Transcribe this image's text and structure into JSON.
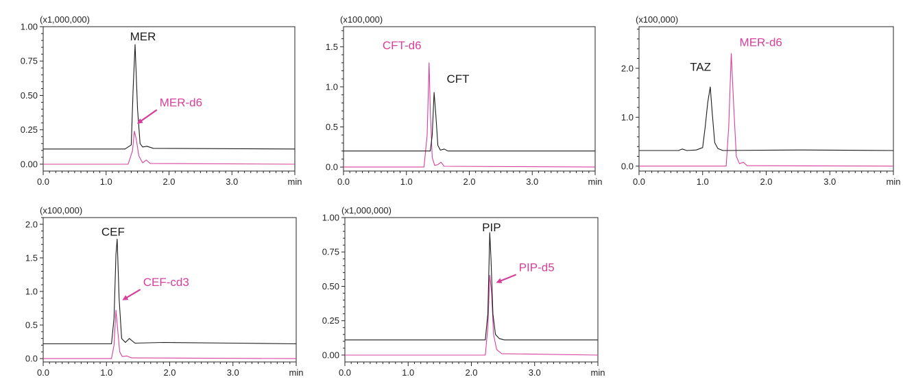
{
  "colors": {
    "analyte": "#1a1a1a",
    "internal_standard": "#d63f9a",
    "frame": "#222222"
  },
  "chart_data": [
    {
      "type": "line",
      "multiplier": "(x1,000,000)",
      "x_unit": "min",
      "xlim": [
        0,
        4.0
      ],
      "ylim": [
        -0.05,
        1.0
      ],
      "x_ticks": [
        "0.0",
        "1.0",
        "2.0",
        "3.0"
      ],
      "y_ticks": [
        "0.00",
        "0.25",
        "0.50",
        "0.75",
        "1.00"
      ],
      "series": [
        {
          "name": "MER",
          "role": "analyte",
          "x": [
            0,
            1.3,
            1.4,
            1.43,
            1.46,
            1.5,
            1.54,
            1.58,
            1.65,
            1.75,
            4.0
          ],
          "y": [
            0.11,
            0.11,
            0.14,
            0.55,
            0.87,
            0.4,
            0.15,
            0.125,
            0.13,
            0.115,
            0.11
          ]
        },
        {
          "name": "MER-d6",
          "role": "internal_standard",
          "x": [
            0,
            1.35,
            1.42,
            1.45,
            1.48,
            1.52,
            1.58,
            1.64,
            1.7,
            4.0
          ],
          "y": [
            0.0,
            0.0,
            0.1,
            0.24,
            0.18,
            0.06,
            0.01,
            0.03,
            0.005,
            0.0
          ]
        }
      ],
      "annotations": [
        {
          "text": "MER",
          "role": "analyte",
          "x": 1.38,
          "y": 0.9,
          "arrow_to": null
        },
        {
          "text": "MER-d6",
          "role": "internal_standard",
          "x": 1.85,
          "y": 0.42,
          "arrow_to": [
            1.51,
            0.3
          ]
        }
      ]
    },
    {
      "type": "line",
      "multiplier": "(x100,000)",
      "x_unit": "min",
      "xlim": [
        0,
        4.0
      ],
      "ylim": [
        -0.05,
        1.75
      ],
      "x_ticks": [
        "0.0",
        "1.0",
        "2.0",
        "3.0"
      ],
      "y_ticks": [
        "0.0",
        "0.5",
        "1.0",
        "1.5"
      ],
      "series": [
        {
          "name": "CFT",
          "role": "analyte",
          "x": [
            0,
            1.38,
            1.41,
            1.44,
            1.47,
            1.5,
            1.54,
            1.6,
            1.66,
            4.0
          ],
          "y": [
            0.2,
            0.2,
            0.4,
            0.93,
            0.62,
            0.27,
            0.21,
            0.225,
            0.2,
            0.2
          ]
        },
        {
          "name": "CFT-d6",
          "role": "internal_standard",
          "x": [
            0,
            1.28,
            1.33,
            1.36,
            1.38,
            1.41,
            1.45,
            1.5,
            1.55,
            1.6,
            4.0
          ],
          "y": [
            0.0,
            0.0,
            0.4,
            1.3,
            0.7,
            0.12,
            0.02,
            0.03,
            0.06,
            0.01,
            0.0
          ]
        }
      ],
      "annotations": [
        {
          "text": "CFT-d6",
          "role": "internal_standard",
          "x": 0.62,
          "y": 1.47,
          "arrow_to": null
        },
        {
          "text": "CFT",
          "role": "analyte",
          "x": 1.64,
          "y": 1.05,
          "arrow_to": null
        }
      ]
    },
    {
      "type": "line",
      "multiplier": "(x100,000)",
      "x_unit": "min",
      "xlim": [
        0,
        4.0
      ],
      "ylim": [
        -0.1,
        2.85
      ],
      "x_ticks": [
        "0.0",
        "1.0",
        "2.0",
        "3.0"
      ],
      "y_ticks": [
        "0.0",
        "1.0",
        "2.0"
      ],
      "series": [
        {
          "name": "TAZ",
          "role": "analyte",
          "x": [
            0,
            0.62,
            0.68,
            0.75,
            0.9,
            1.0,
            1.04,
            1.08,
            1.12,
            1.15,
            1.19,
            1.24,
            1.32,
            2.5,
            2.6,
            4.0
          ],
          "y": [
            0.32,
            0.32,
            0.35,
            0.32,
            0.33,
            0.38,
            0.8,
            1.3,
            1.62,
            1.1,
            0.48,
            0.36,
            0.32,
            0.33,
            0.33,
            0.32
          ]
        },
        {
          "name": "MER-d6",
          "role": "internal_standard",
          "x": [
            0,
            1.37,
            1.41,
            1.45,
            1.49,
            1.53,
            1.58,
            1.64,
            1.7,
            4.0
          ],
          "y": [
            0.0,
            0.0,
            0.8,
            2.3,
            1.2,
            0.2,
            0.05,
            0.08,
            0.01,
            0.0
          ]
        }
      ],
      "annotations": [
        {
          "text": "TAZ",
          "role": "analyte",
          "x": 0.8,
          "y": 1.95,
          "arrow_to": null
        },
        {
          "text": "MER-d6",
          "role": "internal_standard",
          "x": 1.58,
          "y": 2.45,
          "arrow_to": null
        }
      ]
    },
    {
      "type": "line",
      "multiplier": "(x100,000)",
      "x_unit": "min",
      "xlim": [
        0,
        4.0
      ],
      "ylim": [
        -0.05,
        2.1
      ],
      "x_ticks": [
        "0.0",
        "1.0",
        "2.0",
        "3.0"
      ],
      "y_ticks": [
        "0.0",
        "0.5",
        "1.0",
        "1.5",
        "2.0"
      ],
      "series": [
        {
          "name": "CEF",
          "role": "analyte",
          "x": [
            0,
            1.08,
            1.12,
            1.15,
            1.17,
            1.2,
            1.24,
            1.3,
            1.36,
            1.45,
            1.9,
            3.0,
            4.0
          ],
          "y": [
            0.22,
            0.22,
            0.6,
            1.55,
            1.78,
            0.9,
            0.3,
            0.24,
            0.3,
            0.23,
            0.24,
            0.23,
            0.22
          ]
        },
        {
          "name": "CEF-cd3",
          "role": "internal_standard",
          "x": [
            0,
            1.08,
            1.12,
            1.15,
            1.18,
            1.21,
            1.25,
            1.32,
            1.4,
            4.0
          ],
          "y": [
            0.0,
            0.0,
            0.2,
            0.72,
            0.4,
            0.1,
            0.03,
            0.04,
            0.01,
            0.0
          ]
        }
      ],
      "annotations": [
        {
          "text": "CEF",
          "role": "analyte",
          "x": 0.92,
          "y": 1.83,
          "arrow_to": null
        },
        {
          "text": "CEF-cd3",
          "role": "internal_standard",
          "x": 1.58,
          "y": 1.08,
          "arrow_to": [
            1.27,
            0.88
          ]
        }
      ]
    },
    {
      "type": "line",
      "multiplier": "(x1,000,000)",
      "x_unit": "min",
      "xlim": [
        0,
        4.0
      ],
      "ylim": [
        -0.05,
        1.0
      ],
      "x_ticks": [
        "0.0",
        "1.0",
        "2.0",
        "3.0"
      ],
      "y_ticks": [
        "0.00",
        "0.25",
        "0.50",
        "0.75",
        "1.00"
      ],
      "series": [
        {
          "name": "PIP",
          "role": "analyte",
          "x": [
            0,
            2.22,
            2.26,
            2.29,
            2.31,
            2.34,
            2.38,
            2.44,
            2.52,
            4.0
          ],
          "y": [
            0.11,
            0.11,
            0.3,
            0.89,
            0.7,
            0.3,
            0.15,
            0.12,
            0.11,
            0.11
          ]
        },
        {
          "name": "PIP-d5",
          "role": "internal_standard",
          "x": [
            0,
            2.22,
            2.26,
            2.29,
            2.32,
            2.35,
            2.4,
            2.48,
            4.0
          ],
          "y": [
            0.0,
            0.0,
            0.2,
            0.58,
            0.45,
            0.15,
            0.04,
            0.01,
            0.0
          ]
        }
      ],
      "annotations": [
        {
          "text": "PIP",
          "role": "analyte",
          "x": 2.17,
          "y": 0.9,
          "arrow_to": null
        },
        {
          "text": "PIP-d5",
          "role": "internal_standard",
          "x": 2.75,
          "y": 0.61,
          "arrow_to": [
            2.41,
            0.53
          ]
        }
      ]
    }
  ]
}
